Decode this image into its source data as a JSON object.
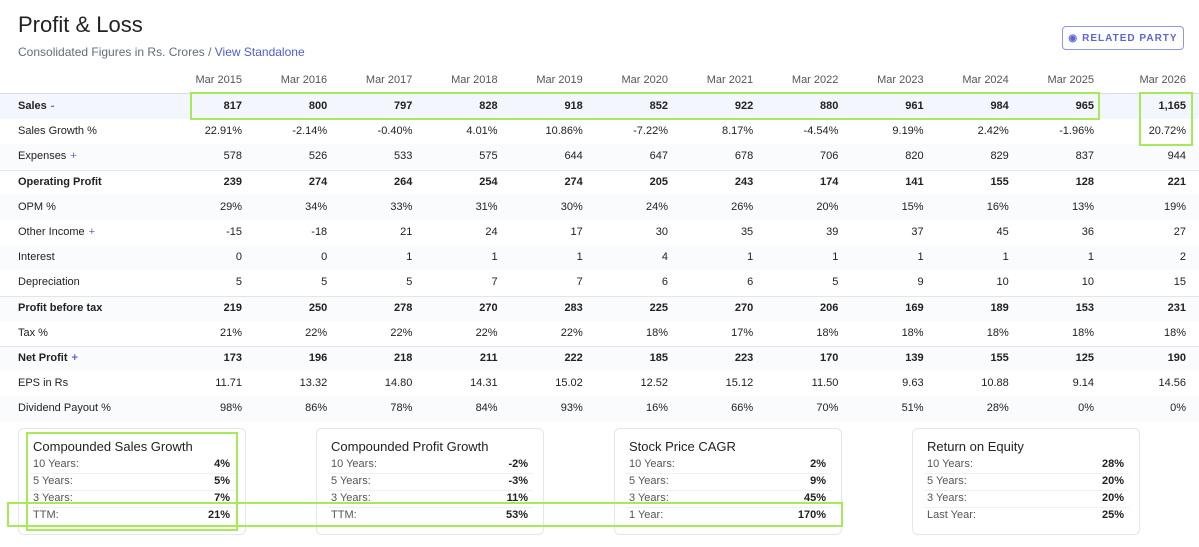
{
  "header": {
    "title": "Profit & Loss",
    "subtitle": "Consolidated Figures in Rs. Crores /",
    "link": "View Standalone",
    "button": "RELATED PARTY"
  },
  "table": {
    "columns": [
      "Mar 2015",
      "Mar 2016",
      "Mar 2017",
      "Mar 2018",
      "Mar 2019",
      "Mar 2020",
      "Mar 2021",
      "Mar 2022",
      "Mar 2023",
      "Mar 2024",
      "Mar 2025",
      "Mar 2026"
    ],
    "rows": [
      {
        "label": "Sales",
        "toggle": "-",
        "bold": true,
        "values": [
          "817",
          "800",
          "797",
          "828",
          "918",
          "852",
          "922",
          "880",
          "961",
          "984",
          "965",
          "1,165"
        ]
      },
      {
        "label": "Sales Growth %",
        "values": [
          "22.91%",
          "-2.14%",
          "-0.40%",
          "4.01%",
          "10.86%",
          "-7.22%",
          "8.17%",
          "-4.54%",
          "9.19%",
          "2.42%",
          "-1.96%",
          "20.72%"
        ]
      },
      {
        "label": "Expenses",
        "toggle": "+",
        "values": [
          "578",
          "526",
          "533",
          "575",
          "644",
          "647",
          "678",
          "706",
          "820",
          "829",
          "837",
          "944"
        ]
      },
      {
        "label": "Operating Profit",
        "bold": true,
        "values": [
          "239",
          "274",
          "264",
          "254",
          "274",
          "205",
          "243",
          "174",
          "141",
          "155",
          "128",
          "221"
        ]
      },
      {
        "label": "OPM %",
        "values": [
          "29%",
          "34%",
          "33%",
          "31%",
          "30%",
          "24%",
          "26%",
          "20%",
          "15%",
          "16%",
          "13%",
          "19%"
        ]
      },
      {
        "label": "Other Income",
        "toggle": "+",
        "values": [
          "-15",
          "-18",
          "21",
          "24",
          "17",
          "30",
          "35",
          "39",
          "37",
          "45",
          "36",
          "27"
        ]
      },
      {
        "label": "Interest",
        "values": [
          "0",
          "0",
          "1",
          "1",
          "1",
          "4",
          "1",
          "1",
          "1",
          "1",
          "1",
          "2"
        ]
      },
      {
        "label": "Depreciation",
        "values": [
          "5",
          "5",
          "5",
          "7",
          "7",
          "6",
          "6",
          "5",
          "9",
          "10",
          "10",
          "15"
        ]
      },
      {
        "label": "Profit before tax",
        "bold": true,
        "values": [
          "219",
          "250",
          "278",
          "270",
          "283",
          "225",
          "270",
          "206",
          "169",
          "189",
          "153",
          "231"
        ]
      },
      {
        "label": "Tax %",
        "values": [
          "21%",
          "22%",
          "22%",
          "22%",
          "22%",
          "18%",
          "17%",
          "18%",
          "18%",
          "18%",
          "18%",
          "18%"
        ]
      },
      {
        "label": "Net Profit",
        "toggle": "+",
        "bold": true,
        "values": [
          "173",
          "196",
          "218",
          "211",
          "222",
          "185",
          "223",
          "170",
          "139",
          "155",
          "125",
          "190"
        ]
      },
      {
        "label": "EPS in Rs",
        "values": [
          "11.71",
          "13.32",
          "14.80",
          "14.31",
          "15.02",
          "12.52",
          "15.12",
          "11.50",
          "9.63",
          "10.88",
          "9.14",
          "14.56"
        ]
      },
      {
        "label": "Dividend Payout %",
        "values": [
          "98%",
          "86%",
          "78%",
          "84%",
          "93%",
          "16%",
          "66%",
          "70%",
          "51%",
          "28%",
          "0%",
          "0%"
        ]
      }
    ]
  },
  "cards": [
    {
      "title": "Compounded Sales Growth",
      "rows": [
        [
          "10 Years:",
          "4%"
        ],
        [
          "5 Years:",
          "5%"
        ],
        [
          "3 Years:",
          "7%"
        ],
        [
          "TTM:",
          "21%"
        ]
      ]
    },
    {
      "title": "Compounded Profit Growth",
      "rows": [
        [
          "10 Years:",
          "-2%"
        ],
        [
          "5 Years:",
          "-3%"
        ],
        [
          "3 Years:",
          "11%"
        ],
        [
          "TTM:",
          "53%"
        ]
      ]
    },
    {
      "title": "Stock Price CAGR",
      "rows": [
        [
          "10 Years:",
          "2%"
        ],
        [
          "5 Years:",
          "9%"
        ],
        [
          "3 Years:",
          "45%"
        ],
        [
          "1 Year:",
          "170%"
        ]
      ]
    },
    {
      "title": "Return on Equity",
      "rows": [
        [
          "10 Years:",
          "28%"
        ],
        [
          "5 Years:",
          "20%"
        ],
        [
          "3 Years:",
          "20%"
        ],
        [
          "Last Year:",
          "25%"
        ]
      ]
    }
  ]
}
